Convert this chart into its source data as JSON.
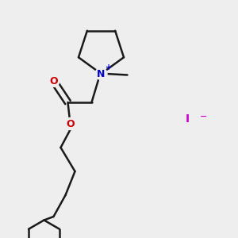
{
  "background_color": "#eeeeee",
  "bond_color": "#1a1a1a",
  "N_color": "#0000cc",
  "O_color": "#cc0000",
  "I_color": "#cc00cc",
  "line_width": 1.8,
  "figsize": [
    3.0,
    3.0
  ],
  "dpi": 100,
  "xlim": [
    0,
    1
  ],
  "ylim": [
    0,
    1
  ]
}
